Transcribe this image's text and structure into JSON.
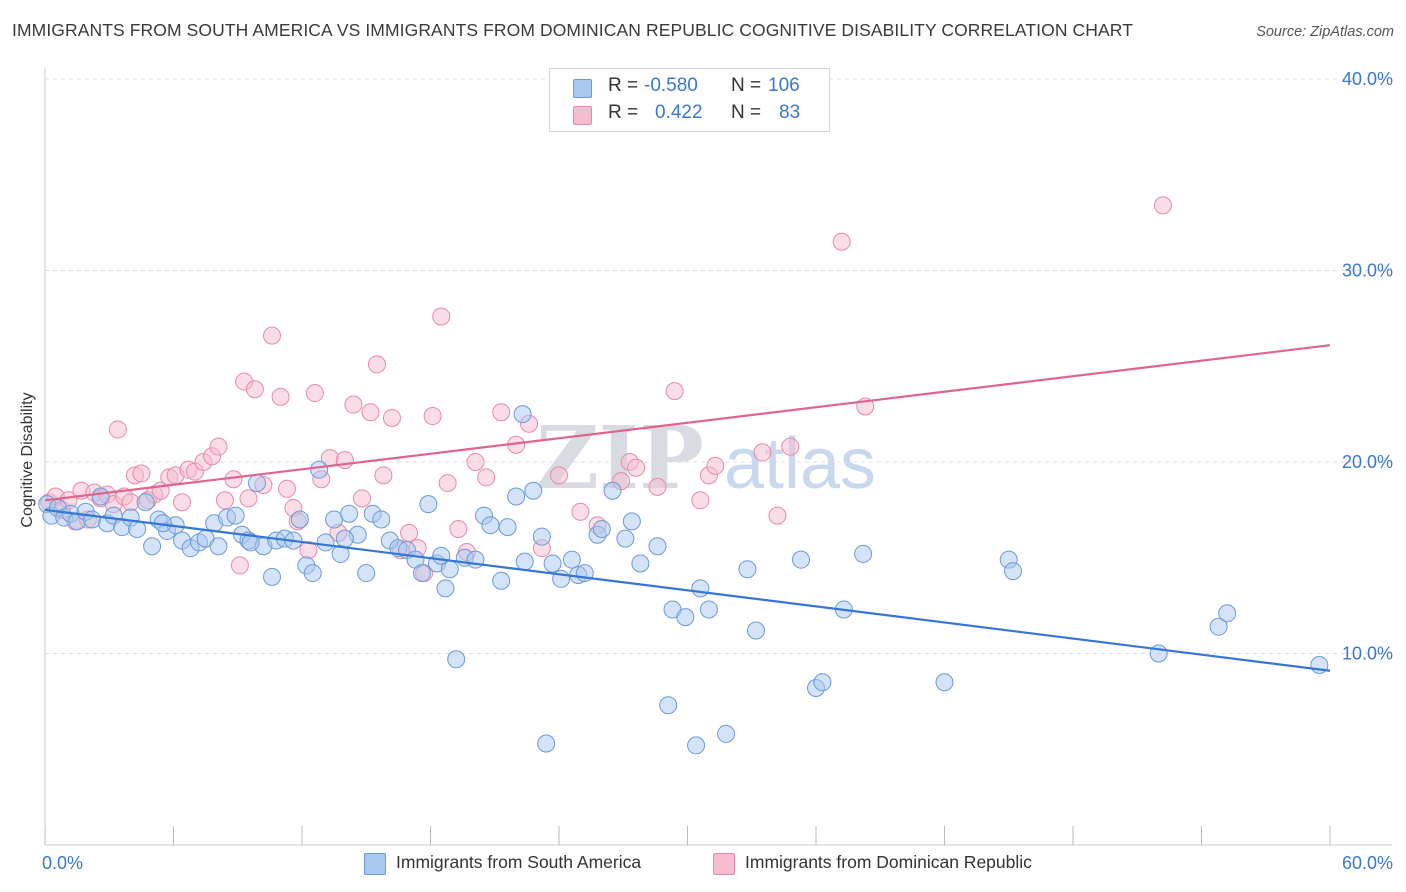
{
  "title": "IMMIGRANTS FROM SOUTH AMERICA VS IMMIGRANTS FROM DOMINICAN REPUBLIC COGNITIVE DISABILITY CORRELATION CHART",
  "source": "Source: ZipAtlas.com",
  "watermark": {
    "zip": "ZIP",
    "atlas": "atlas"
  },
  "legend": {
    "rows": [
      {
        "r_label": "R =",
        "r_value": "-0.580",
        "n_label": "N =",
        "n_value": "106"
      },
      {
        "r_label": "R =",
        "r_value": "0.422",
        "n_label": "N =",
        "n_value": "83"
      }
    ]
  },
  "colors": {
    "blue_fill": "#a9c8f0",
    "blue_stroke": "#6b9bd8",
    "blue_line": "#3477d4",
    "pink_fill": "#f6bccf",
    "pink_stroke": "#e98aa8",
    "pink_line": "#e0648c",
    "tick_text": "#3a78c9",
    "grid": "#dddddd"
  },
  "chart_data": {
    "type": "scatter",
    "title": "IMMIGRANTS FROM SOUTH AMERICA VS IMMIGRANTS FROM DOMINICAN REPUBLIC COGNITIVE DISABILITY CORRELATION CHART",
    "xlabel": "",
    "ylabel": "Cognitive Disability",
    "xlim": [
      0,
      60
    ],
    "ylim": [
      0,
      40
    ],
    "x_tick_labels": [
      "0.0%",
      "60.0%"
    ],
    "y_ticks": [
      10,
      20,
      30,
      40
    ],
    "y_tick_labels": [
      "10.0%",
      "20.0%",
      "30.0%",
      "40.0%"
    ],
    "grid": true,
    "legend_position": "top-center",
    "series": [
      {
        "name": "Immigrants from South America",
        "color": "#a9c8f0",
        "trend": [
          [
            0,
            17.5
          ],
          [
            60,
            9.1
          ]
        ],
        "points": [
          [
            0.1,
            17.8
          ],
          [
            0.3,
            17.2
          ],
          [
            0.6,
            17.6
          ],
          [
            0.9,
            17.1
          ],
          [
            1.2,
            17.3
          ],
          [
            1.5,
            16.9
          ],
          [
            1.9,
            17.4
          ],
          [
            2.2,
            17.0
          ],
          [
            2.6,
            18.2
          ],
          [
            2.9,
            16.8
          ],
          [
            3.2,
            17.2
          ],
          [
            3.6,
            16.6
          ],
          [
            4.0,
            17.1
          ],
          [
            4.3,
            16.5
          ],
          [
            4.7,
            17.9
          ],
          [
            5.0,
            15.6
          ],
          [
            5.3,
            17.0
          ],
          [
            5.7,
            16.4
          ],
          [
            6.1,
            16.7
          ],
          [
            6.4,
            15.9
          ],
          [
            6.8,
            15.5
          ],
          [
            7.2,
            15.8
          ],
          [
            7.5,
            16.0
          ],
          [
            7.9,
            16.8
          ],
          [
            8.1,
            15.6
          ],
          [
            8.5,
            17.1
          ],
          [
            8.9,
            17.2
          ],
          [
            9.2,
            16.2
          ],
          [
            9.5,
            15.9
          ],
          [
            9.9,
            18.9
          ],
          [
            10.2,
            15.6
          ],
          [
            10.6,
            14.0
          ],
          [
            10.8,
            15.9
          ],
          [
            11.2,
            16.0
          ],
          [
            11.6,
            15.9
          ],
          [
            11.9,
            17.0
          ],
          [
            12.2,
            14.6
          ],
          [
            12.5,
            14.2
          ],
          [
            12.8,
            19.6
          ],
          [
            13.1,
            15.8
          ],
          [
            13.5,
            17.0
          ],
          [
            13.8,
            15.2
          ],
          [
            14.2,
            17.3
          ],
          [
            14.6,
            16.2
          ],
          [
            15.0,
            14.2
          ],
          [
            15.3,
            17.3
          ],
          [
            15.7,
            17.0
          ],
          [
            16.1,
            15.9
          ],
          [
            16.5,
            15.5
          ],
          [
            16.9,
            15.4
          ],
          [
            17.3,
            14.9
          ],
          [
            17.6,
            14.2
          ],
          [
            17.9,
            17.8
          ],
          [
            18.3,
            14.7
          ],
          [
            18.7,
            13.4
          ],
          [
            18.9,
            14.4
          ],
          [
            19.2,
            9.7
          ],
          [
            19.6,
            15.0
          ],
          [
            20.1,
            14.9
          ],
          [
            20.5,
            17.2
          ],
          [
            20.8,
            16.7
          ],
          [
            21.3,
            13.8
          ],
          [
            21.6,
            16.6
          ],
          [
            22.0,
            18.2
          ],
          [
            22.4,
            14.8
          ],
          [
            22.8,
            18.5
          ],
          [
            23.2,
            16.1
          ],
          [
            23.4,
            5.3
          ],
          [
            23.7,
            14.7
          ],
          [
            24.1,
            13.9
          ],
          [
            24.6,
            14.9
          ],
          [
            24.9,
            14.1
          ],
          [
            25.2,
            14.2
          ],
          [
            25.8,
            16.2
          ],
          [
            26.5,
            18.5
          ],
          [
            27.1,
            16.0
          ],
          [
            27.4,
            16.9
          ],
          [
            27.8,
            14.7
          ],
          [
            28.6,
            15.6
          ],
          [
            29.1,
            7.3
          ],
          [
            29.3,
            12.3
          ],
          [
            29.9,
            11.9
          ],
          [
            30.4,
            5.2
          ],
          [
            30.6,
            13.4
          ],
          [
            31.0,
            12.3
          ],
          [
            31.8,
            5.8
          ],
          [
            32.8,
            14.4
          ],
          [
            33.2,
            11.2
          ],
          [
            22.3,
            22.5
          ],
          [
            35.3,
            14.9
          ],
          [
            36.0,
            8.2
          ],
          [
            36.3,
            8.5
          ],
          [
            37.3,
            12.3
          ],
          [
            38.2,
            15.2
          ],
          [
            42.0,
            8.5
          ],
          [
            45.0,
            14.9
          ],
          [
            45.2,
            14.3
          ],
          [
            52.0,
            10.0
          ],
          [
            54.8,
            11.4
          ],
          [
            55.2,
            12.1
          ],
          [
            59.5,
            9.4
          ],
          [
            5.5,
            16.8
          ],
          [
            9.6,
            15.8
          ],
          [
            14.0,
            16.0
          ],
          [
            18.5,
            15.1
          ],
          [
            26.0,
            16.5
          ]
        ]
      },
      {
        "name": "Immigrants from Dominican Republic",
        "color": "#f6bccf",
        "trend": [
          [
            0,
            18.0
          ],
          [
            60,
            26.1
          ]
        ],
        "points": [
          [
            0.2,
            17.9
          ],
          [
            0.5,
            18.2
          ],
          [
            0.8,
            17.5
          ],
          [
            1.1,
            18.0
          ],
          [
            1.4,
            16.9
          ],
          [
            1.7,
            18.5
          ],
          [
            2.0,
            17.0
          ],
          [
            2.3,
            18.4
          ],
          [
            2.6,
            18.1
          ],
          [
            2.9,
            18.3
          ],
          [
            3.2,
            17.8
          ],
          [
            3.4,
            21.7
          ],
          [
            3.7,
            18.2
          ],
          [
            4.0,
            17.9
          ],
          [
            4.2,
            19.3
          ],
          [
            4.5,
            19.4
          ],
          [
            4.8,
            18.0
          ],
          [
            5.1,
            18.3
          ],
          [
            5.4,
            18.5
          ],
          [
            5.8,
            19.2
          ],
          [
            6.1,
            19.3
          ],
          [
            6.4,
            17.9
          ],
          [
            6.7,
            19.6
          ],
          [
            7.0,
            19.5
          ],
          [
            7.4,
            20.0
          ],
          [
            7.8,
            20.3
          ],
          [
            8.1,
            20.8
          ],
          [
            8.4,
            18.0
          ],
          [
            8.8,
            19.1
          ],
          [
            9.1,
            14.6
          ],
          [
            9.3,
            24.2
          ],
          [
            9.5,
            18.1
          ],
          [
            9.8,
            23.8
          ],
          [
            10.2,
            18.8
          ],
          [
            10.6,
            26.6
          ],
          [
            11.0,
            23.4
          ],
          [
            11.3,
            18.6
          ],
          [
            11.6,
            17.6
          ],
          [
            11.8,
            16.9
          ],
          [
            12.3,
            15.4
          ],
          [
            12.6,
            23.6
          ],
          [
            12.9,
            19.1
          ],
          [
            13.3,
            20.2
          ],
          [
            13.7,
            16.3
          ],
          [
            14.0,
            20.1
          ],
          [
            14.4,
            23.0
          ],
          [
            14.8,
            18.1
          ],
          [
            15.2,
            22.6
          ],
          [
            15.5,
            25.1
          ],
          [
            15.8,
            19.3
          ],
          [
            16.2,
            22.3
          ],
          [
            16.6,
            15.4
          ],
          [
            17.0,
            16.3
          ],
          [
            17.4,
            15.5
          ],
          [
            17.7,
            14.2
          ],
          [
            18.1,
            22.4
          ],
          [
            18.5,
            27.6
          ],
          [
            18.8,
            18.9
          ],
          [
            19.3,
            16.5
          ],
          [
            19.7,
            15.3
          ],
          [
            20.1,
            20.0
          ],
          [
            20.6,
            19.2
          ],
          [
            21.3,
            22.6
          ],
          [
            22.0,
            20.9
          ],
          [
            22.6,
            22.0
          ],
          [
            23.2,
            15.5
          ],
          [
            24.0,
            19.3
          ],
          [
            25.0,
            17.4
          ],
          [
            25.8,
            16.7
          ],
          [
            26.9,
            19.0
          ],
          [
            27.3,
            20.0
          ],
          [
            27.6,
            19.7
          ],
          [
            28.6,
            18.7
          ],
          [
            29.4,
            23.7
          ],
          [
            30.6,
            18.0
          ],
          [
            31.0,
            19.3
          ],
          [
            31.3,
            19.8
          ],
          [
            33.5,
            20.5
          ],
          [
            34.2,
            17.2
          ],
          [
            34.8,
            20.8
          ],
          [
            37.2,
            31.5
          ],
          [
            38.3,
            22.9
          ],
          [
            52.2,
            33.4
          ]
        ]
      }
    ]
  },
  "bottom_legend": [
    "Immigrants from South America",
    "Immigrants from Dominican Republic"
  ]
}
